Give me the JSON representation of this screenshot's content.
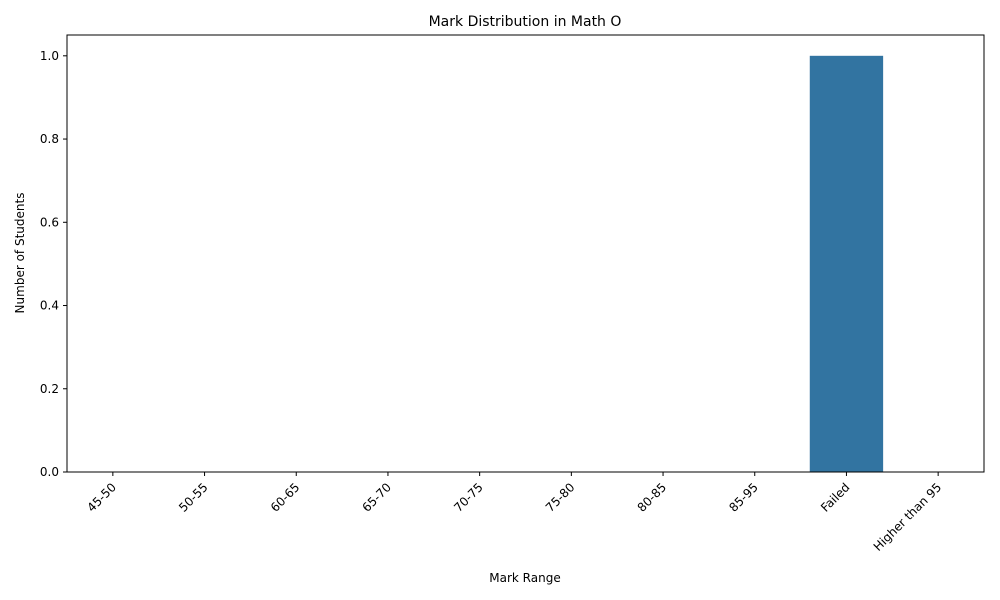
{
  "chart_data": {
    "type": "bar",
    "title": "Mark Distribution in Math O",
    "xlabel": "Mark Range",
    "ylabel": "Number of Students",
    "categories": [
      "45-50",
      "50-55",
      "60-65",
      "65-70",
      "70-75",
      "75-80",
      "80-85",
      "85-95",
      "Failed",
      "Higher than 95"
    ],
    "values": [
      0,
      0,
      0,
      0,
      0,
      0,
      0,
      0,
      1,
      0
    ],
    "ylim": [
      0,
      1.05
    ],
    "yticks": [
      0.0,
      0.2,
      0.4,
      0.6,
      0.8,
      1.0
    ],
    "ytick_labels": [
      "0.0",
      "0.2",
      "0.4",
      "0.6",
      "0.8",
      "1.0"
    ],
    "bar_color": "#3274a1",
    "grid": false,
    "legend": "none"
  }
}
